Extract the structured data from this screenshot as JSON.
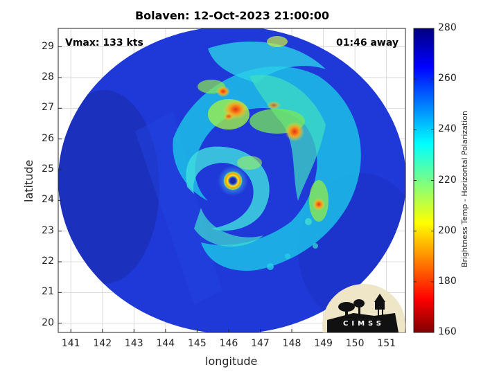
{
  "title": "Bolaven: 12-Oct-2023 21:00:00",
  "annotations": {
    "vmax": "Vmax: 133 kts",
    "away": "01:46 away"
  },
  "axes": {
    "xlabel": "longitude",
    "ylabel": "latitude",
    "x_ticks": [
      "141",
      "142",
      "143",
      "144",
      "145",
      "146",
      "147",
      "148",
      "149",
      "150",
      "151"
    ],
    "y_ticks": [
      "20",
      "21",
      "22",
      "23",
      "24",
      "25",
      "26",
      "27",
      "28",
      "29"
    ],
    "xlim": [
      140.6,
      151.6
    ],
    "ylim": [
      19.7,
      29.6
    ]
  },
  "colorbar": {
    "label": "Brightness Temp - Horizontal Polarization",
    "ticks": [
      "160",
      "180",
      "200",
      "220",
      "240",
      "260",
      "280"
    ],
    "range": [
      160,
      280
    ],
    "colormap": "jet"
  },
  "storm": {
    "name": "Bolaven",
    "eye_lon": 146.2,
    "eye_lat": 24.65
  },
  "logo": {
    "text": "CIMSS"
  },
  "colors": {
    "eye_ring": "#f0e010",
    "eye_center": "#1a2aa0",
    "background": "#1f39d8"
  }
}
